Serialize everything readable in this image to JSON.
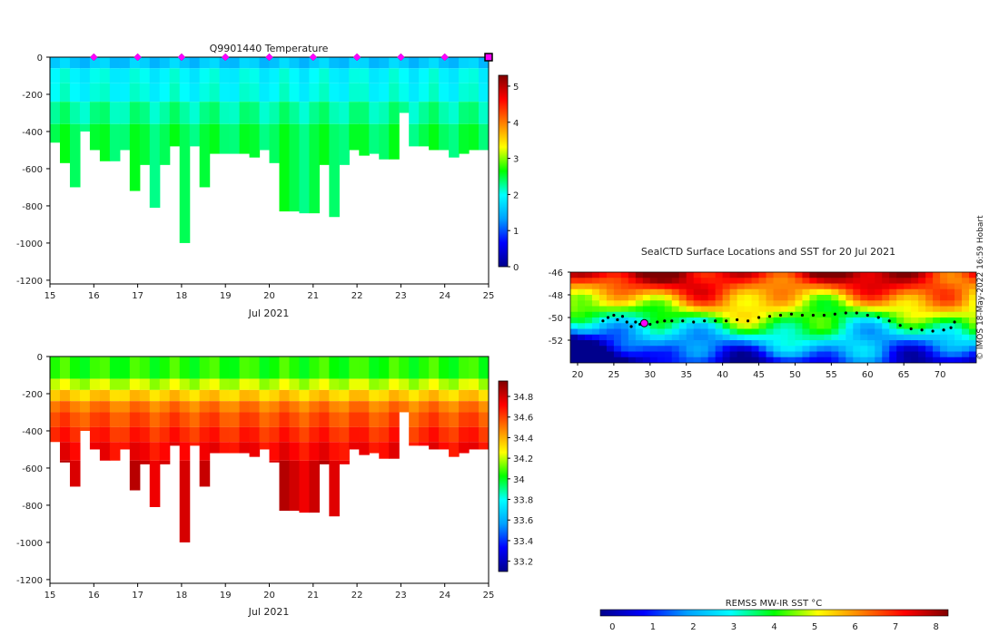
{
  "credit": "© IMOS 18-May-2022 16:59 Hobart",
  "colors": {
    "temperature_scale": [
      "#00008c",
      "#0000ff",
      "#00a0ff",
      "#00ffff",
      "#00ff00",
      "#ffff00",
      "#ff8000",
      "#ff0000",
      "#800000"
    ],
    "salinity_scale": [
      "#00008c",
      "#0000ff",
      "#00a0ff",
      "#00ffff",
      "#00ff00",
      "#ffff00",
      "#ff8000",
      "#ff0000",
      "#800000"
    ],
    "sst_scale": [
      "#00008c",
      "#0000ff",
      "#00a0ff",
      "#00ffff",
      "#00ff00",
      "#ffff00",
      "#ff8000",
      "#ff0000",
      "#800000"
    ],
    "profile_marker": "#ff00ff",
    "track": "#000000"
  },
  "chart_data": [
    {
      "id": "temperature",
      "type": "heatmap",
      "title": "Q9901440  Temperature",
      "xlabel": "Jul 2021",
      "ylabel": "",
      "x_ticks": [
        "15",
        "16",
        "17",
        "18",
        "19",
        "20",
        "21",
        "22",
        "23",
        "24",
        "25"
      ],
      "xlim": [
        15,
        25
      ],
      "y_ticks": [
        "0",
        "-200",
        "-400",
        "-600",
        "-800",
        "-1000",
        "-1200"
      ],
      "ylim": [
        -1220,
        0
      ],
      "colorbar": {
        "range": [
          0,
          5.3
        ],
        "ticks": [
          "0",
          "1",
          "2",
          "3",
          "4",
          "5"
        ]
      },
      "profile_marker_days": [
        16,
        17,
        18,
        19,
        20,
        21,
        22,
        23,
        24
      ],
      "current_position_day": 25,
      "profile_max_depths": [
        460,
        570,
        700,
        400,
        500,
        560,
        560,
        500,
        720,
        580,
        810,
        580,
        480,
        1000,
        480,
        700,
        520,
        520,
        520,
        520,
        540,
        500,
        570,
        830,
        830,
        840,
        840,
        580,
        860,
        580,
        500,
        530,
        520,
        550,
        550,
        300,
        480,
        480,
        500,
        500,
        540,
        520,
        500,
        500
      ],
      "layers": [
        {
          "to_depth": 60,
          "value": 1.6
        },
        {
          "to_depth": 140,
          "value": 1.95
        },
        {
          "to_depth": 240,
          "value": 2.0
        },
        {
          "to_depth": 360,
          "value": 2.25
        },
        {
          "to_depth": 1000,
          "value": 2.45
        }
      ]
    },
    {
      "id": "salinity",
      "type": "heatmap",
      "title": "",
      "xlabel": "Jul 2021",
      "ylabel": "",
      "x_ticks": [
        "15",
        "16",
        "17",
        "18",
        "19",
        "20",
        "21",
        "22",
        "23",
        "24",
        "25"
      ],
      "xlim": [
        15,
        25
      ],
      "y_ticks": [
        "0",
        "-200",
        "-400",
        "-600",
        "-800",
        "-1000",
        "-1200"
      ],
      "ylim": [
        -1220,
        0
      ],
      "colorbar": {
        "range": [
          33.1,
          34.95
        ],
        "ticks": [
          "33.2",
          "33.4",
          "33.6",
          "33.8",
          "34",
          "34.2",
          "34.4",
          "34.6",
          "34.8"
        ]
      },
      "profile_max_depths": [
        460,
        570,
        700,
        400,
        500,
        560,
        560,
        500,
        720,
        580,
        810,
        580,
        480,
        1000,
        480,
        700,
        520,
        520,
        520,
        520,
        540,
        500,
        570,
        830,
        830,
        840,
        840,
        580,
        860,
        580,
        500,
        530,
        520,
        550,
        550,
        300,
        480,
        480,
        500,
        500,
        540,
        520,
        500,
        500
      ],
      "layers": [
        {
          "to_depth": 120,
          "value": 34.05
        },
        {
          "to_depth": 180,
          "value": 34.2
        },
        {
          "to_depth": 240,
          "value": 34.35
        },
        {
          "to_depth": 300,
          "value": 34.5
        },
        {
          "to_depth": 380,
          "value": 34.58
        },
        {
          "to_depth": 460,
          "value": 34.65
        },
        {
          "to_depth": 560,
          "value": 34.72
        },
        {
          "to_depth": 1000,
          "value": 34.8
        }
      ]
    },
    {
      "id": "sst_map",
      "type": "heatmap",
      "title": "SealCTD Surface Locations and SST for 20 Jul 2021",
      "xlabel": "",
      "ylabel": "",
      "x_ticks": [
        "20",
        "25",
        "30",
        "35",
        "40",
        "45",
        "50",
        "55",
        "60",
        "65",
        "70"
      ],
      "xlim": [
        19,
        75
      ],
      "y_ticks": [
        "-46",
        "-48",
        "-50",
        "-52"
      ],
      "ylim": [
        -54,
        -46
      ],
      "colorbar": {
        "label": "REMSS MW-IR SST °C",
        "range": [
          -0.3,
          8.3
        ],
        "ticks": [
          "0",
          "1",
          "2",
          "3",
          "4",
          "5",
          "6",
          "7",
          "8"
        ]
      },
      "current_location": {
        "lon": 29.2,
        "lat": -50.5
      },
      "track": [
        {
          "lon": 23.5,
          "lat": -50.3
        },
        {
          "lon": 24.2,
          "lat": -50.0
        },
        {
          "lon": 25.0,
          "lat": -49.8
        },
        {
          "lon": 25.5,
          "lat": -50.2
        },
        {
          "lon": 26.2,
          "lat": -49.9
        },
        {
          "lon": 26.8,
          "lat": -50.4
        },
        {
          "lon": 27.4,
          "lat": -50.8
        },
        {
          "lon": 28.0,
          "lat": -50.4
        },
        {
          "lon": 28.6,
          "lat": -50.6
        },
        {
          "lon": 29.2,
          "lat": -50.5
        },
        {
          "lon": 30.0,
          "lat": -50.6
        },
        {
          "lon": 31.0,
          "lat": -50.4
        },
        {
          "lon": 32.0,
          "lat": -50.3
        },
        {
          "lon": 33.0,
          "lat": -50.3
        },
        {
          "lon": 34.5,
          "lat": -50.3
        },
        {
          "lon": 36.0,
          "lat": -50.4
        },
        {
          "lon": 37.5,
          "lat": -50.3
        },
        {
          "lon": 39.0,
          "lat": -50.3
        },
        {
          "lon": 40.5,
          "lat": -50.3
        },
        {
          "lon": 42.0,
          "lat": -50.2
        },
        {
          "lon": 43.5,
          "lat": -50.3
        },
        {
          "lon": 45.0,
          "lat": -50.0
        },
        {
          "lon": 46.5,
          "lat": -49.9
        },
        {
          "lon": 48.0,
          "lat": -49.8
        },
        {
          "lon": 49.5,
          "lat": -49.7
        },
        {
          "lon": 51.0,
          "lat": -49.8
        },
        {
          "lon": 52.5,
          "lat": -49.8
        },
        {
          "lon": 54.0,
          "lat": -49.8
        },
        {
          "lon": 55.5,
          "lat": -49.7
        },
        {
          "lon": 57.0,
          "lat": -49.6
        },
        {
          "lon": 58.5,
          "lat": -49.6
        },
        {
          "lon": 60.0,
          "lat": -49.8
        },
        {
          "lon": 61.5,
          "lat": -50.0
        },
        {
          "lon": 63.0,
          "lat": -50.3
        },
        {
          "lon": 64.5,
          "lat": -50.7
        },
        {
          "lon": 66.0,
          "lat": -51.0
        },
        {
          "lon": 67.5,
          "lat": -51.1
        },
        {
          "lon": 69.0,
          "lat": -51.2
        },
        {
          "lon": 70.5,
          "lat": -51.1
        },
        {
          "lon": 71.5,
          "lat": -50.9
        },
        {
          "lon": 72.0,
          "lat": -50.4
        }
      ]
    }
  ]
}
